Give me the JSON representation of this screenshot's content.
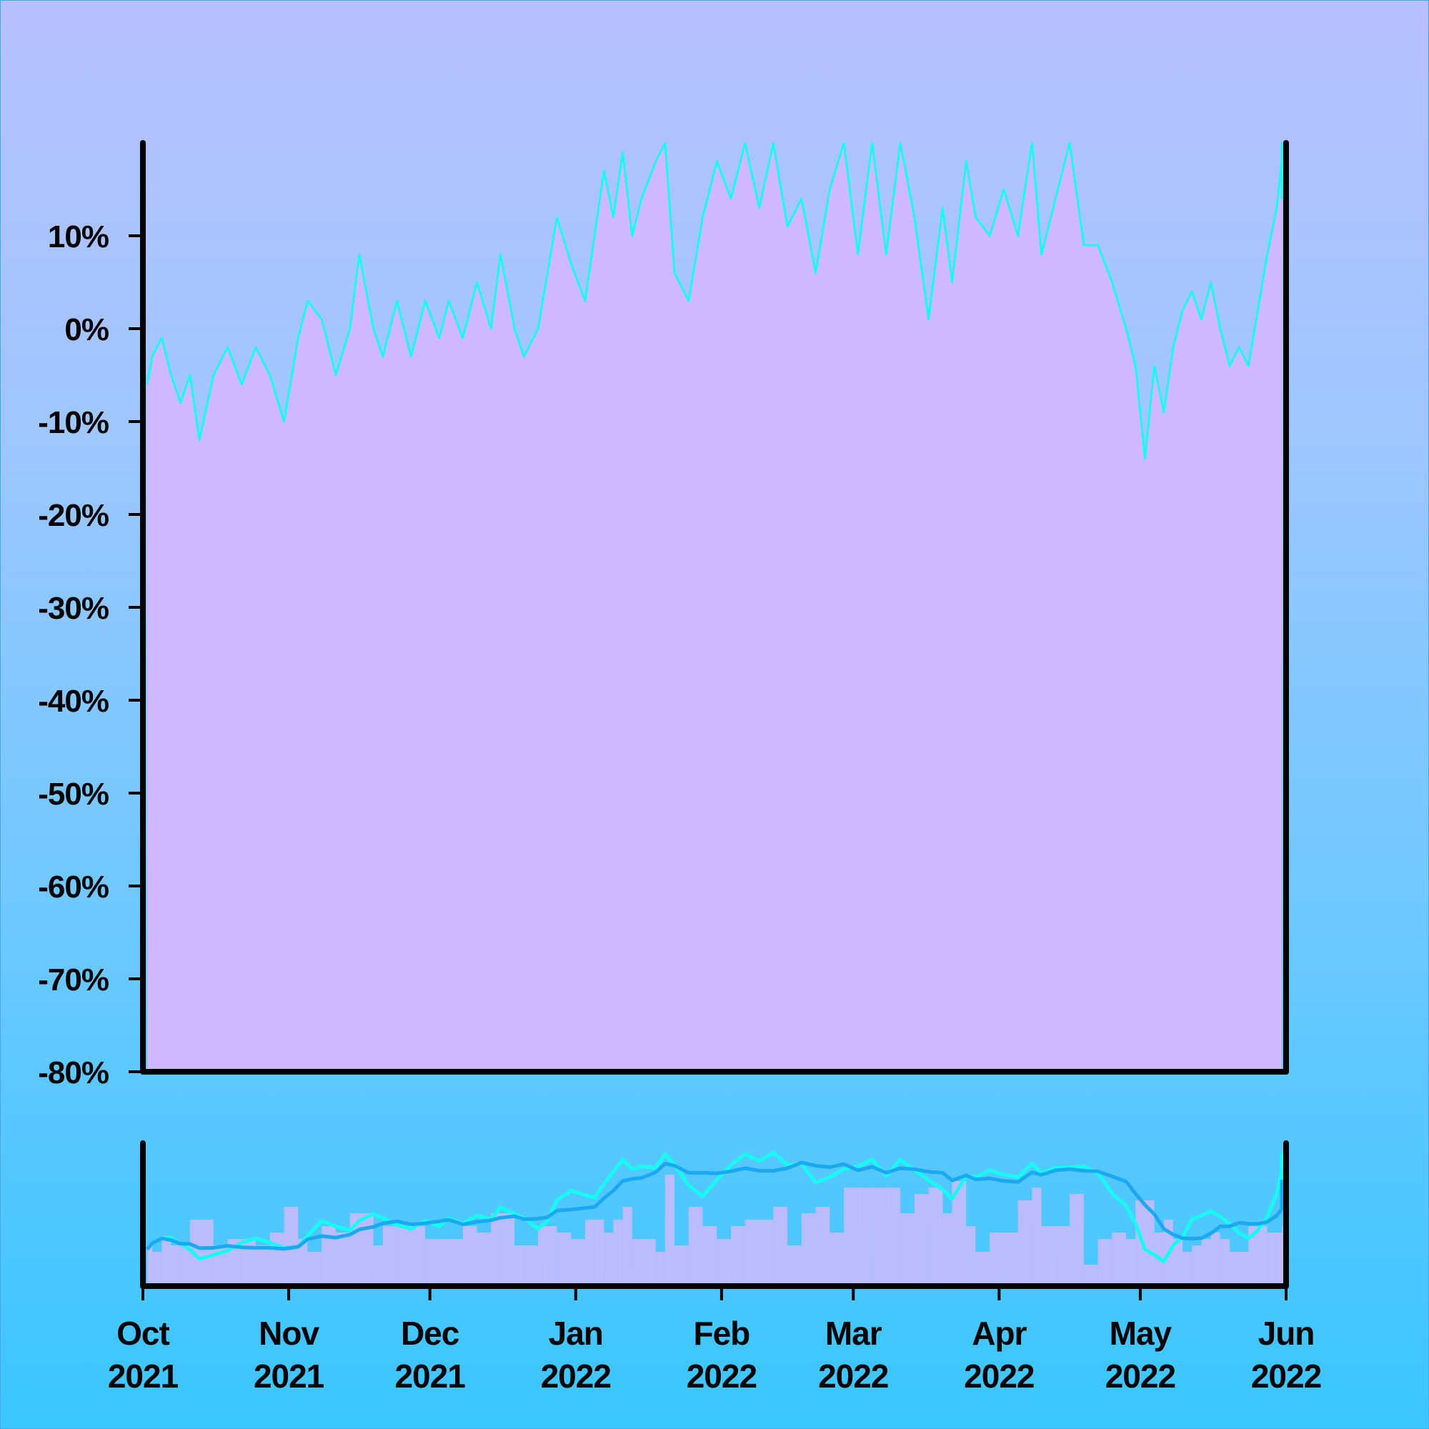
{
  "chart_data": {
    "type": "area",
    "colors": {
      "area_fill": "#cfb8ff",
      "line": "#14fff0",
      "ma_short": "#14fff0",
      "ma_long": "#1aa8f0",
      "axis": "#000000"
    },
    "ylim": [
      -80,
      20
    ],
    "yticks": [
      {
        "value": 10,
        "label": "10%"
      },
      {
        "value": 0,
        "label": "0%"
      },
      {
        "value": -10,
        "label": "-10%"
      },
      {
        "value": -20,
        "label": "-20%"
      },
      {
        "value": -30,
        "label": "-30%"
      },
      {
        "value": -40,
        "label": "-40%"
      },
      {
        "value": -50,
        "label": "-50%"
      },
      {
        "value": -60,
        "label": "-60%"
      },
      {
        "value": -70,
        "label": "-70%"
      },
      {
        "value": -80,
        "label": "-80%"
      }
    ],
    "xrange": [
      "2021-10-01",
      "2022-06-01"
    ],
    "xticks": [
      {
        "date": "2021-10-01",
        "month": "Oct",
        "year": "2021"
      },
      {
        "date": "2021-11-01",
        "month": "Nov",
        "year": "2021"
      },
      {
        "date": "2021-12-01",
        "month": "Dec",
        "year": "2021"
      },
      {
        "date": "2022-01-01",
        "month": "Jan",
        "year": "2022"
      },
      {
        "date": "2022-02-01",
        "month": "Feb",
        "year": "2022"
      },
      {
        "date": "2022-03-01",
        "month": "Mar",
        "year": "2022"
      },
      {
        "date": "2022-04-01",
        "month": "Apr",
        "year": "2022"
      },
      {
        "date": "2022-05-01",
        "month": "May",
        "year": "2022"
      },
      {
        "date": "2022-06-01",
        "month": "Jun",
        "year": "2022"
      }
    ],
    "series": [
      {
        "values": [
          [
            "2021-10-01",
            -6
          ],
          [
            "2021-10-03",
            -3
          ],
          [
            "2021-10-05",
            -1
          ],
          [
            "2021-10-07",
            -5
          ],
          [
            "2021-10-09",
            -8
          ],
          [
            "2021-10-11",
            -5
          ],
          [
            "2021-10-13",
            -12
          ],
          [
            "2021-10-16",
            -5
          ],
          [
            "2021-10-19",
            -2
          ],
          [
            "2021-10-22",
            -6
          ],
          [
            "2021-10-25",
            -2
          ],
          [
            "2021-10-28",
            -5
          ],
          [
            "2021-10-31",
            -10
          ],
          [
            "2021-11-03",
            -1
          ],
          [
            "2021-11-05",
            3
          ],
          [
            "2021-11-08",
            1
          ],
          [
            "2021-11-11",
            -5
          ],
          [
            "2021-11-14",
            0
          ],
          [
            "2021-11-16",
            8
          ],
          [
            "2021-11-19",
            0
          ],
          [
            "2021-11-21",
            -3
          ],
          [
            "2021-11-24",
            3
          ],
          [
            "2021-11-27",
            -3
          ],
          [
            "2021-11-30",
            3
          ],
          [
            "2021-12-03",
            -1
          ],
          [
            "2021-12-05",
            3
          ],
          [
            "2021-12-08",
            -1
          ],
          [
            "2021-12-11",
            5
          ],
          [
            "2021-12-14",
            0
          ],
          [
            "2021-12-16",
            8
          ],
          [
            "2021-12-19",
            0
          ],
          [
            "2021-12-21",
            -3
          ],
          [
            "2021-12-24",
            0
          ],
          [
            "2021-12-26",
            6
          ],
          [
            "2021-12-28",
            12
          ],
          [
            "2021-12-31",
            7
          ],
          [
            "2022-01-03",
            3
          ],
          [
            "2022-01-05",
            10
          ],
          [
            "2022-01-07",
            17
          ],
          [
            "2022-01-09",
            12
          ],
          [
            "2022-01-11",
            19
          ],
          [
            "2022-01-13",
            10
          ],
          [
            "2022-01-15",
            14
          ],
          [
            "2022-01-18",
            18
          ],
          [
            "2022-01-20",
            20
          ],
          [
            "2022-01-22",
            6
          ],
          [
            "2022-01-25",
            3
          ],
          [
            "2022-01-28",
            12
          ],
          [
            "2022-01-31",
            18
          ],
          [
            "2022-02-03",
            14
          ],
          [
            "2022-02-06",
            20
          ],
          [
            "2022-02-09",
            13
          ],
          [
            "2022-02-12",
            20
          ],
          [
            "2022-02-15",
            11
          ],
          [
            "2022-02-18",
            14
          ],
          [
            "2022-02-21",
            6
          ],
          [
            "2022-02-24",
            15
          ],
          [
            "2022-02-27",
            20
          ],
          [
            "2022-03-02",
            8
          ],
          [
            "2022-03-05",
            20
          ],
          [
            "2022-03-08",
            8
          ],
          [
            "2022-03-11",
            20
          ],
          [
            "2022-03-14",
            12
          ],
          [
            "2022-03-17",
            1
          ],
          [
            "2022-03-20",
            13
          ],
          [
            "2022-03-22",
            5
          ],
          [
            "2022-03-25",
            18
          ],
          [
            "2022-03-27",
            12
          ],
          [
            "2022-03-30",
            10
          ],
          [
            "2022-04-02",
            15
          ],
          [
            "2022-04-05",
            10
          ],
          [
            "2022-04-08",
            20
          ],
          [
            "2022-04-10",
            8
          ],
          [
            "2022-04-13",
            14
          ],
          [
            "2022-04-16",
            20
          ],
          [
            "2022-04-19",
            9
          ],
          [
            "2022-04-22",
            9
          ],
          [
            "2022-04-25",
            5
          ],
          [
            "2022-04-28",
            0
          ],
          [
            "2022-04-30",
            -4
          ],
          [
            "2022-05-02",
            -14
          ],
          [
            "2022-05-04",
            -4
          ],
          [
            "2022-05-06",
            -9
          ],
          [
            "2022-05-08",
            -2
          ],
          [
            "2022-05-10",
            2
          ],
          [
            "2022-05-12",
            4
          ],
          [
            "2022-05-14",
            1
          ],
          [
            "2022-05-16",
            5
          ],
          [
            "2022-05-18",
            0
          ],
          [
            "2022-05-20",
            -4
          ],
          [
            "2022-05-22",
            -2
          ],
          [
            "2022-05-24",
            -4
          ],
          [
            "2022-05-26",
            2
          ],
          [
            "2022-05-28",
            8
          ],
          [
            "2022-05-30",
            13
          ],
          [
            "2022-06-01",
            18
          ],
          [
            "2022-06-03",
            14
          ],
          [
            "2022-06-05",
            20
          ],
          [
            "2022-06-07",
            17
          ]
        ]
      }
    ]
  }
}
